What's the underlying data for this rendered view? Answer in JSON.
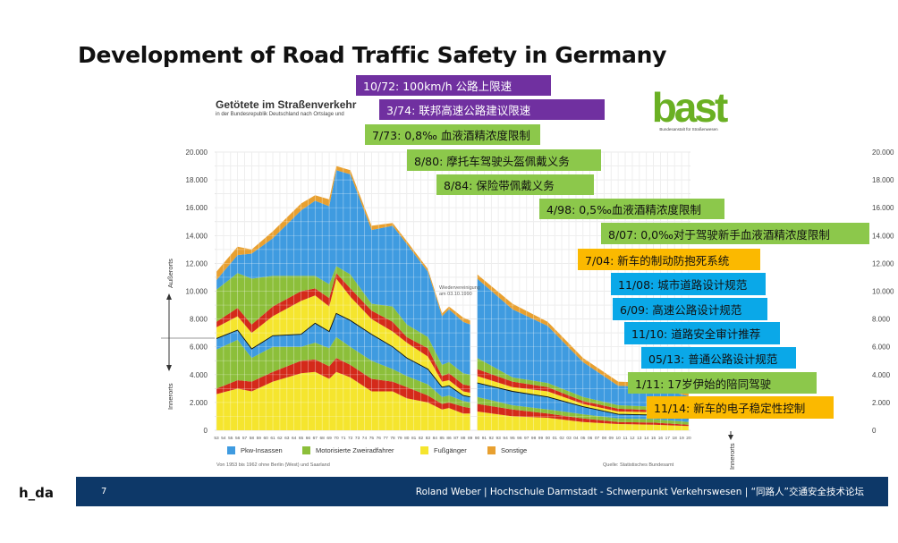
{
  "slide": {
    "title": "Development of Road Traffic Safety in Germany",
    "page_number": "7",
    "footer": "Roland Weber | Hochschule Darmstadt - Schwerpunkt Verkehrswesen | “同路人”交通安全技术论坛",
    "logo_left": "h_da"
  },
  "bast_logo": {
    "word": "bast",
    "subtitle": "Bundesanstalt für Straßenwesen",
    "color": "#6ab023"
  },
  "annotations": [
    {
      "text": "10/72:  100km/h 公路上限速",
      "color": "purple"
    },
    {
      "text": "3/74:   联邦高速公路建议限速",
      "color": "purple"
    },
    {
      "text": "7/73:   0,8‰ 血液酒精浓度限制",
      "color": "green"
    },
    {
      "text": "8/80:   摩托车驾驶头盔佩戴义务",
      "color": "green"
    },
    {
      "text": "8/84:   保险带佩戴义务",
      "color": "green"
    },
    {
      "text": "4/98:  0,5‰血液酒精浓度限制",
      "color": "green"
    },
    {
      "text": "8/07:   0,0‰对于驾驶新手血液酒精浓度限制",
      "color": "green"
    },
    {
      "text": "7/04:   新车的制动防抱死系统",
      "color": "orange"
    },
    {
      "text": "11/08:  城市道路设计规范",
      "color": "blue"
    },
    {
      "text": "6/09:   高速公路设计规范",
      "color": "blue"
    },
    {
      "text": "11/10:   道路安全审计推荐",
      "color": "blue"
    },
    {
      "text": "05/13:  普通公路设计规范",
      "color": "blue"
    },
    {
      "text": "1/11:     17岁伊始的陪同驾驶",
      "color": "green"
    },
    {
      "text": "11/14:    新车的电子稳定性控制",
      "color": "orange"
    }
  ],
  "annotation_colors": {
    "purple": "#7030a0",
    "green": "#8cc84b",
    "orange": "#fbb900",
    "blue": "#0aa8e8"
  },
  "chart_data": {
    "type": "area",
    "stacked": true,
    "title": "Getötete im Straßenverkehr",
    "subtitle": "in der Bundesrepublik Deutschland nach Ortslage und",
    "legend": [
      {
        "label": "Pkw-Insassen",
        "color": "#3f9be0"
      },
      {
        "label": "Motorisierte Zweiradfahrer",
        "color": "#8cbf3a"
      },
      {
        "label": "Fußgänger",
        "color": "#f5e52e"
      },
      {
        "label": "Sonstige",
        "color": "#e8a030"
      }
    ],
    "legend_placement": "top",
    "zone_labels": {
      "upper": "Außerorts",
      "lower": "Innerorts"
    },
    "annotation": "Wiedervereinigung am 03.10.1990",
    "footnote_left": "Von 1953 bis 1962 ohne Berlin (West) und Saarland",
    "footnote_right": "Quelle: Statistisches Bundesamt",
    "ylim": [
      0,
      20000
    ],
    "y_ticks": [
      "0",
      "2.000",
      "4.000",
      "6.000",
      "8.000",
      "10.000",
      "12.000",
      "14.000",
      "16.000",
      "18.000",
      "20.000"
    ],
    "x_tick_labels": [
      "53",
      "54",
      "55",
      "56",
      "57",
      "58",
      "59",
      "60",
      "61",
      "62",
      "63",
      "64",
      "65",
      "66",
      "67",
      "68",
      "69",
      "70",
      "71",
      "72",
      "73",
      "74",
      "75",
      "76",
      "77",
      "78",
      "79",
      "80",
      "81",
      "82",
      "83",
      "84",
      "85",
      "86",
      "87",
      "88",
      "89",
      "90",
      "91",
      "92",
      "93",
      "94",
      "95",
      "96",
      "97",
      "98",
      "99",
      "00",
      "01",
      "02",
      "03",
      "04",
      "05",
      "06",
      "07",
      "08",
      "09",
      "10",
      "11",
      "12",
      "13",
      "14",
      "15",
      "16",
      "17",
      "18",
      "19",
      "20"
    ],
    "grid": true,
    "x": [
      1953,
      1956,
      1958,
      1961,
      1965,
      1967,
      1969,
      1970,
      1972,
      1975,
      1978,
      1980,
      1983,
      1985,
      1986,
      1988,
      1989,
      1990,
      1995,
      2000,
      2005,
      2010,
      2015,
      2020
    ],
    "series": [
      {
        "zone": "Innerorts",
        "color": "#f5e52e",
        "values": [
          2600,
          3000,
          2800,
          3500,
          4100,
          4200,
          3700,
          4200,
          3800,
          2800,
          2800,
          2300,
          2000,
          1500,
          1600,
          1200,
          1200,
          1350,
          1000,
          900,
          600,
          450,
          400,
          300
        ]
      },
      {
        "zone": "Innerorts",
        "color": "#d42a1a",
        "values": [
          400,
          600,
          700,
          700,
          900,
          900,
          900,
          1000,
          900,
          900,
          700,
          800,
          500,
          400,
          400,
          500,
          400,
          550,
          500,
          300,
          250,
          150,
          150,
          100
        ]
      },
      {
        "zone": "Innerorts",
        "color": "#8cbf3a",
        "values": [
          2800,
          2900,
          1700,
          1800,
          1000,
          1200,
          1300,
          1500,
          1300,
          1300,
          900,
          800,
          800,
          500,
          500,
          400,
          400,
          500,
          300,
          300,
          300,
          250,
          250,
          200
        ]
      },
      {
        "zone": "Innerorts",
        "color": "#3f9be0",
        "values": [
          800,
          700,
          650,
          800,
          900,
          1400,
          1200,
          1700,
          1900,
          1900,
          1600,
          1300,
          1100,
          700,
          700,
          400,
          400,
          1000,
          1000,
          900,
          550,
          300,
          300,
          250
        ]
      },
      {
        "zone": "Außerorts",
        "color": "#f5e52e",
        "values": [
          800,
          1000,
          1150,
          1400,
          2400,
          2000,
          1800,
          2500,
          1700,
          1100,
          1100,
          1100,
          900,
          400,
          400,
          300,
          300,
          500,
          300,
          400,
          200,
          200,
          200,
          150
        ]
      },
      {
        "zone": "Außerorts",
        "color": "#d42a1a",
        "values": [
          400,
          600,
          600,
          700,
          700,
          500,
          600,
          400,
          600,
          600,
          700,
          400,
          600,
          400,
          500,
          500,
          500,
          500,
          400,
          300,
          200,
          200,
          150,
          150
        ]
      },
      {
        "zone": "Außerorts",
        "color": "#8cbf3a",
        "values": [
          2300,
          2500,
          3300,
          2200,
          1100,
          900,
          1000,
          500,
          1000,
          500,
          1100,
          900,
          800,
          800,
          800,
          800,
          800,
          800,
          300,
          300,
          300,
          250,
          250,
          200
        ]
      },
      {
        "zone": "Außerorts",
        "color": "#3f9be0",
        "values": [
          700,
          1300,
          1800,
          2700,
          4700,
          5400,
          5600,
          6900,
          7200,
          5300,
          5800,
          5800,
          4700,
          3500,
          3800,
          3700,
          3600,
          5700,
          4900,
          4100,
          2500,
          1400,
          1400,
          1100
        ]
      },
      {
        "zone": "Außerorts",
        "color": "#e8a030",
        "values": [
          600,
          600,
          300,
          500,
          500,
          400,
          500,
          300,
          300,
          300,
          200,
          200,
          200,
          200,
          200,
          300,
          300,
          300,
          400,
          300,
          300,
          300,
          300,
          250
        ]
      }
    ]
  }
}
